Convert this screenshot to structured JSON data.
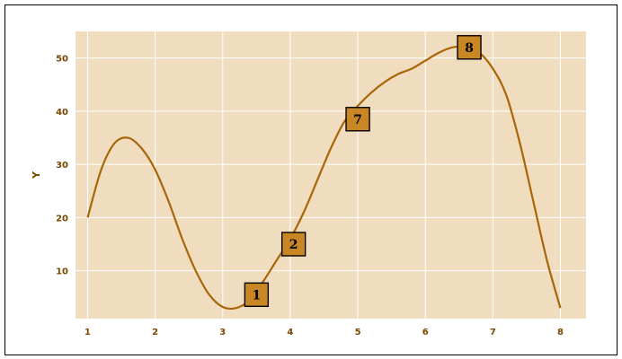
{
  "chart_data": {
    "type": "line",
    "title": "",
    "xlabel": "",
    "ylabel": "Y",
    "xlim": [
      0.82,
      8.38
    ],
    "ylim": [
      1,
      55
    ],
    "x_ticks": [
      1,
      2,
      3,
      4,
      5,
      6,
      7,
      8
    ],
    "y_ticks": [
      10,
      20,
      30,
      40,
      50
    ],
    "grid": true,
    "colors": {
      "line": "#a86608",
      "plot_bg": "#f0dcbe",
      "grid": "#ffffff",
      "tick": "#7a4800",
      "marker_fill": "#c98624"
    },
    "series": [
      {
        "x": [
          1,
          1.2,
          1.4,
          1.6,
          1.8,
          2,
          2.2,
          2.4,
          2.6,
          2.8,
          3,
          3.2,
          3.4,
          3.6,
          3.8,
          4,
          4.2,
          4.4,
          4.6,
          4.8,
          5,
          5.2,
          5.4,
          5.6,
          5.8,
          6,
          6.2,
          6.4,
          6.6,
          6.8,
          7,
          7.2,
          7.4,
          7.6,
          7.8,
          8
        ],
        "y": [
          20,
          29,
          34,
          35,
          33,
          29,
          23,
          16,
          10,
          5.5,
          3.2,
          3,
          4.5,
          8,
          12,
          16,
          21,
          27,
          33,
          38,
          41,
          43.5,
          45.5,
          47,
          48,
          49.5,
          51,
          52,
          52,
          51,
          48,
          43,
          34,
          23,
          12,
          3
        ]
      }
    ],
    "markers": [
      {
        "label": "1",
        "x": 3.5,
        "y": 5.5
      },
      {
        "label": "2",
        "x": 4.05,
        "y": 15
      },
      {
        "label": "7",
        "x": 5.0,
        "y": 38.5
      },
      {
        "label": "8",
        "x": 6.65,
        "y": 52
      }
    ]
  }
}
